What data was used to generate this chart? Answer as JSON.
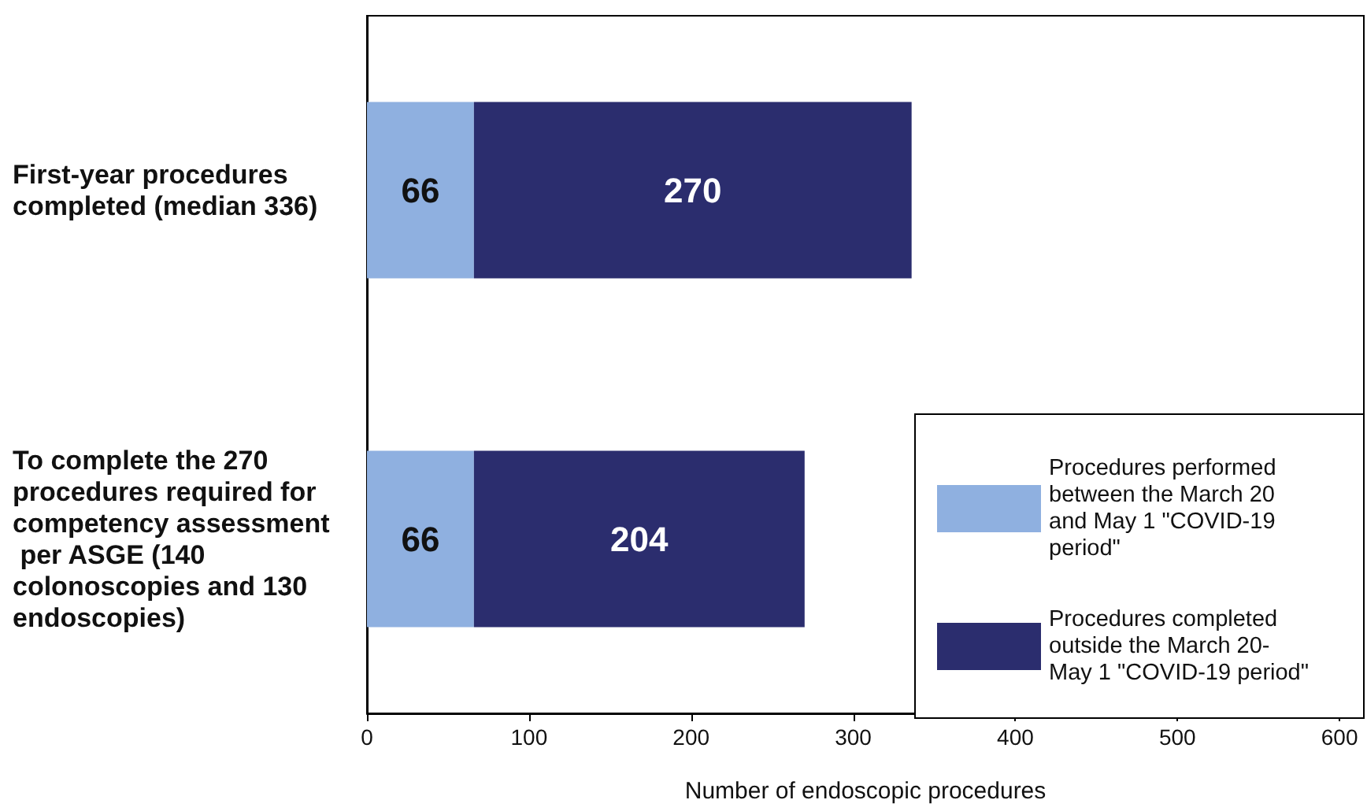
{
  "chart_data": {
    "type": "bar",
    "orientation": "horizontal",
    "stacked": true,
    "xlabel": "Number of endoscopic procedures",
    "categories": [
      "First-year procedures completed (median 336)",
      "To complete the 270 procedures required for competency assessment per ASGE (140 colonoscopies and 130 endoscopies)"
    ],
    "series": [
      {
        "name": "Procedures performed between the March 20 and May 1 \"COVID-19 period\"",
        "color": "#8fb0e0",
        "values": [
          66,
          66
        ]
      },
      {
        "name": "Procedures completed outside the March 20- May 1 \"COVID-19 period\"",
        "color": "#2b2d6e",
        "values": [
          270,
          204
        ]
      }
    ],
    "data_labels": true,
    "xlim": [
      0,
      615
    ],
    "xticks": [
      0,
      100,
      200,
      300,
      400,
      500,
      600
    ],
    "legend": "bottom right",
    "grid": false
  }
}
